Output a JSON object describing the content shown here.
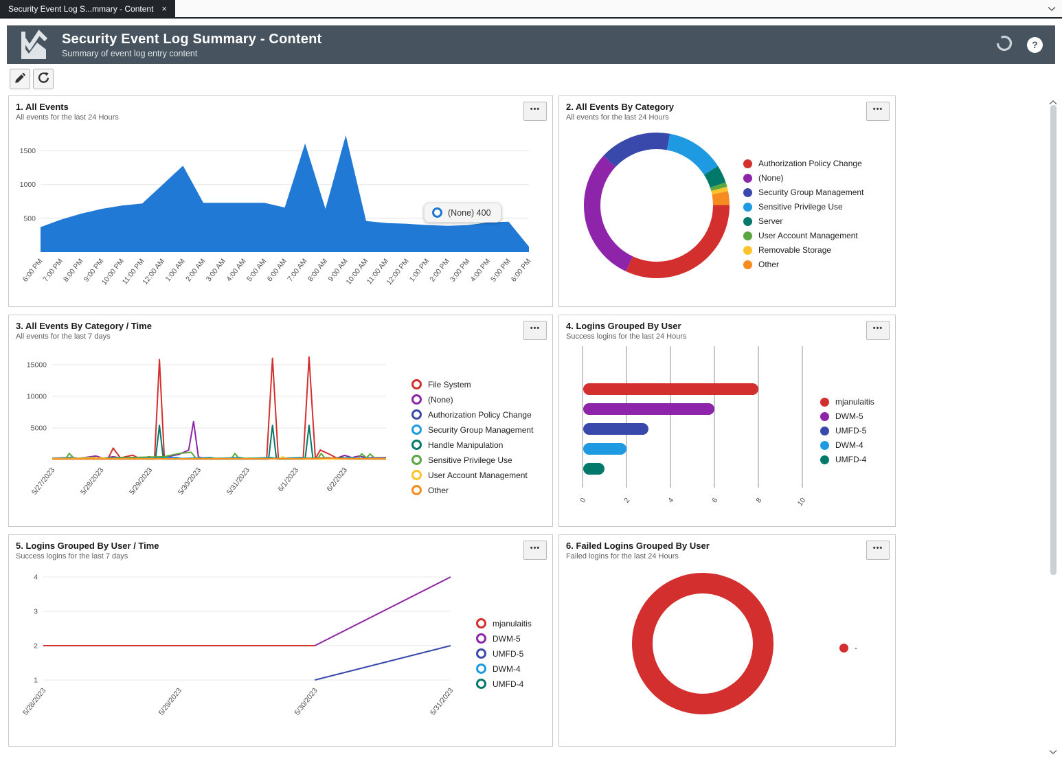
{
  "window": {
    "tab_title": "Security Event Log S...mmary - Content",
    "tab_close": "×"
  },
  "header": {
    "title": "Security Event Log Summary - Content",
    "subtitle": "Summary of event log entry content",
    "help_glyph": "?"
  },
  "icons": {
    "panel_menu_dots": "•••"
  },
  "colors": {
    "red": "#d32f2f",
    "purple": "#8e24aa",
    "indigo": "#3949ab",
    "blue": "#1e9ae2",
    "teal": "#00796b",
    "green": "#5aa63f",
    "yellow": "#fcc32d",
    "orange": "#f68b1f",
    "area_blue": "#2079d4",
    "header_bg": "#47545f",
    "grid_light": "#e7e7e7",
    "grid_dark": "#8f8f8f"
  },
  "panels": [
    {
      "title": "1. All Events",
      "subtitle": "All events for the last 24 Hours"
    },
    {
      "title": "2. All Events By Category",
      "subtitle": "All events for the last 24 Hours"
    },
    {
      "title": "3. All Events By Category / Time",
      "subtitle": "All events for the last 7 days"
    },
    {
      "title": "4. Logins Grouped By User",
      "subtitle": "Success logins for the last 24 Hours"
    },
    {
      "title": "5. Logins Grouped By User / Time",
      "subtitle": "Success logins for the last 7 days"
    },
    {
      "title": "6. Failed Logins Grouped By User",
      "subtitle": "Failed logins for the last 24 Hours"
    }
  ],
  "chart_data": [
    {
      "type": "area",
      "title": "1. All Events",
      "x_labels": [
        "6:00 PM",
        "7:00 PM",
        "8:00 PM",
        "9:00 PM",
        "10:00 PM",
        "11:00 PM",
        "12:00 AM",
        "1:00 AM",
        "2:00 AM",
        "3:00 AM",
        "4:00 AM",
        "5:00 AM",
        "6:00 AM",
        "7:00 AM",
        "8:00 AM",
        "9:00 AM",
        "10:00 AM",
        "11:00 AM",
        "12:00 PM",
        "1:00 PM",
        "2:00 PM",
        "3:00 PM",
        "4:00 PM",
        "5:00 PM",
        "6:00 PM"
      ],
      "values": [
        370,
        480,
        570,
        640,
        690,
        720,
        1000,
        1280,
        730,
        730,
        730,
        730,
        660,
        1610,
        640,
        1730,
        460,
        430,
        420,
        400,
        390,
        400,
        440,
        450,
        80
      ],
      "ylim": [
        0,
        1750
      ],
      "yticks": [
        500,
        1000,
        1500
      ],
      "series_color_key": "area_blue",
      "tooltip": {
        "label": "(None) 400"
      }
    },
    {
      "type": "donut",
      "title": "2. All Events By Category",
      "start_position": "3-oclock-clockwise",
      "slices": [
        {
          "label": "Authorization Policy Change",
          "color_key": "red",
          "pct": 32
        },
        {
          "label": "(None)",
          "color_key": "purple",
          "pct": 30
        },
        {
          "label": "Security Group Management",
          "color_key": "indigo",
          "pct": 16
        },
        {
          "label": "Sensitive Privilege Use",
          "color_key": "blue",
          "pct": 13
        },
        {
          "label": "Server",
          "color_key": "teal",
          "pct": 4
        },
        {
          "label": "User Account Management",
          "color_key": "green",
          "pct": 1
        },
        {
          "label": "Removable Storage",
          "color_key": "yellow",
          "pct": 1
        },
        {
          "label": "Other",
          "color_key": "orange",
          "pct": 3
        }
      ],
      "legend_style": "dot"
    },
    {
      "type": "line",
      "title": "3. All Events By Category / Time",
      "x_labels": [
        "5/27/2023",
        "5/28/2023",
        "5/29/2023",
        "5/30/2023",
        "5/31/2023",
        "6/1/2023",
        "6/2/2023"
      ],
      "xlim": [
        0,
        6.85
      ],
      "ylim": [
        0,
        16500
      ],
      "yticks": [
        5000,
        10000,
        15000
      ],
      "legend_style": "ring",
      "series": [
        {
          "name": "File System",
          "color_key": "red",
          "points": [
            [
              0,
              100
            ],
            [
              0.9,
              120
            ],
            [
              1.15,
              200
            ],
            [
              1.25,
              1800
            ],
            [
              1.4,
              250
            ],
            [
              1.65,
              700
            ],
            [
              1.78,
              200
            ],
            [
              2.0,
              450
            ],
            [
              2.1,
              200
            ],
            [
              2.2,
              15800
            ],
            [
              2.3,
              250
            ],
            [
              2.4,
              500
            ],
            [
              2.5,
              120
            ],
            [
              3.0,
              100
            ],
            [
              4.4,
              100
            ],
            [
              4.52,
              16000
            ],
            [
              4.64,
              100
            ],
            [
              5.15,
              100
            ],
            [
              5.27,
              16200
            ],
            [
              5.4,
              120
            ],
            [
              5.5,
              1500
            ],
            [
              5.7,
              800
            ],
            [
              5.85,
              200
            ],
            [
              6.2,
              120
            ],
            [
              6.85,
              120
            ]
          ]
        },
        {
          "name": "(None)",
          "color_key": "purple",
          "points": [
            [
              0,
              200
            ],
            [
              0.4,
              350
            ],
            [
              0.55,
              180
            ],
            [
              0.9,
              550
            ],
            [
              1.05,
              200
            ],
            [
              1.25,
              450
            ],
            [
              1.45,
              200
            ],
            [
              1.75,
              300
            ],
            [
              1.95,
              180
            ],
            [
              2.3,
              350
            ],
            [
              2.6,
              800
            ],
            [
              2.8,
              1500
            ],
            [
              2.9,
              6000
            ],
            [
              3.0,
              400
            ],
            [
              3.15,
              150
            ],
            [
              4.0,
              150
            ],
            [
              5.0,
              150
            ],
            [
              5.85,
              250
            ],
            [
              6.0,
              650
            ],
            [
              6.15,
              300
            ],
            [
              6.3,
              550
            ],
            [
              6.45,
              250
            ],
            [
              6.85,
              300
            ]
          ]
        },
        {
          "name": "Authorization Policy Change",
          "color_key": "indigo",
          "points": [
            [
              0,
              130
            ],
            [
              6.85,
              130
            ]
          ]
        },
        {
          "name": "Security Group Management",
          "color_key": "blue",
          "points": [
            [
              0,
              160
            ],
            [
              0.42,
              330
            ],
            [
              0.52,
              160
            ],
            [
              1.5,
              330
            ],
            [
              1.6,
              160
            ],
            [
              2.55,
              330
            ],
            [
              2.65,
              160
            ],
            [
              3.25,
              330
            ],
            [
              3.35,
              160
            ],
            [
              3.85,
              330
            ],
            [
              3.95,
              160
            ],
            [
              4.5,
              330
            ],
            [
              4.6,
              160
            ],
            [
              5.1,
              330
            ],
            [
              5.2,
              160
            ],
            [
              5.68,
              330
            ],
            [
              5.78,
              160
            ],
            [
              6.15,
              330
            ],
            [
              6.25,
              160
            ],
            [
              6.85,
              160
            ]
          ]
        },
        {
          "name": "Handle Manipulation",
          "color_key": "teal",
          "points": [
            [
              0,
              90
            ],
            [
              2.12,
              90
            ],
            [
              2.2,
              5400
            ],
            [
              2.28,
              90
            ],
            [
              4.44,
              90
            ],
            [
              4.52,
              5400
            ],
            [
              4.6,
              90
            ],
            [
              5.19,
              90
            ],
            [
              5.27,
              5400
            ],
            [
              5.35,
              90
            ],
            [
              5.95,
              300
            ],
            [
              6.05,
              90
            ],
            [
              6.85,
              90
            ]
          ]
        },
        {
          "name": "Sensitive Privilege Use",
          "color_key": "green",
          "points": [
            [
              0,
              150
            ],
            [
              0.28,
              200
            ],
            [
              0.35,
              950
            ],
            [
              0.45,
              180
            ],
            [
              0.85,
              350
            ],
            [
              0.95,
              180
            ],
            [
              2.3,
              450
            ],
            [
              2.6,
              950
            ],
            [
              2.85,
              1150
            ],
            [
              2.95,
              180
            ],
            [
              3.68,
              180
            ],
            [
              3.75,
              950
            ],
            [
              3.83,
              180
            ],
            [
              5.45,
              180
            ],
            [
              5.52,
              950
            ],
            [
              5.6,
              180
            ],
            [
              6.28,
              180
            ],
            [
              6.35,
              900
            ],
            [
              6.45,
              250
            ],
            [
              6.52,
              880
            ],
            [
              6.62,
              180
            ],
            [
              6.85,
              180
            ]
          ]
        },
        {
          "name": "User Account Management",
          "color_key": "yellow",
          "points": [
            [
              0,
              110
            ],
            [
              1.05,
              260
            ],
            [
              1.15,
              110
            ],
            [
              4.68,
              110
            ],
            [
              4.73,
              420
            ],
            [
              4.82,
              110
            ],
            [
              5.45,
              60
            ],
            [
              5.9,
              80
            ],
            [
              6.85,
              110
            ]
          ]
        },
        {
          "name": "Other",
          "color_key": "orange",
          "points": [
            [
              0,
              80
            ],
            [
              5.4,
              120
            ],
            [
              5.55,
              220
            ],
            [
              5.75,
              260
            ],
            [
              5.95,
              120
            ],
            [
              6.85,
              90
            ]
          ]
        }
      ]
    },
    {
      "type": "bar-horizontal",
      "title": "4. Logins Grouped By User",
      "categories": [
        "mjanulaitis",
        "DWM-5",
        "UMFD-5",
        "DWM-4",
        "UMFD-4"
      ],
      "values": [
        8,
        6,
        3,
        2,
        1
      ],
      "color_keys": [
        "red",
        "purple",
        "indigo",
        "blue",
        "teal"
      ],
      "xticks": [
        0,
        2,
        4,
        6,
        8,
        10
      ],
      "xlim": [
        0,
        10
      ],
      "legend_style": "dot"
    },
    {
      "type": "line",
      "title": "5. Logins Grouped By User / Time",
      "x_labels": [
        "5/28/2023",
        "5/29/2023",
        "5/30/2023",
        "5/31/2023"
      ],
      "xlim": [
        0,
        3
      ],
      "ylim": [
        1,
        4
      ],
      "yticks": [
        1,
        2,
        3,
        4
      ],
      "legend_style": "ring",
      "series": [
        {
          "name": "mjanulaitis",
          "color_key": "red",
          "points": [
            [
              0,
              2
            ],
            [
              2,
              2
            ]
          ]
        },
        {
          "name": "DWM-5",
          "color_key": "purple",
          "points": [
            [
              2,
              2
            ],
            [
              3,
              4
            ]
          ]
        },
        {
          "name": "UMFD-5",
          "color_key": "indigo",
          "points": [
            [
              2,
              1
            ],
            [
              3,
              2
            ]
          ]
        },
        {
          "name": "DWM-4",
          "color_key": "blue",
          "points": []
        },
        {
          "name": "UMFD-4",
          "color_key": "teal",
          "points": []
        }
      ]
    },
    {
      "type": "donut",
      "title": "6. Failed Logins Grouped By User",
      "slices": [
        {
          "label": "-",
          "color_key": "red",
          "pct": 100
        }
      ],
      "legend_style": "dot"
    }
  ]
}
